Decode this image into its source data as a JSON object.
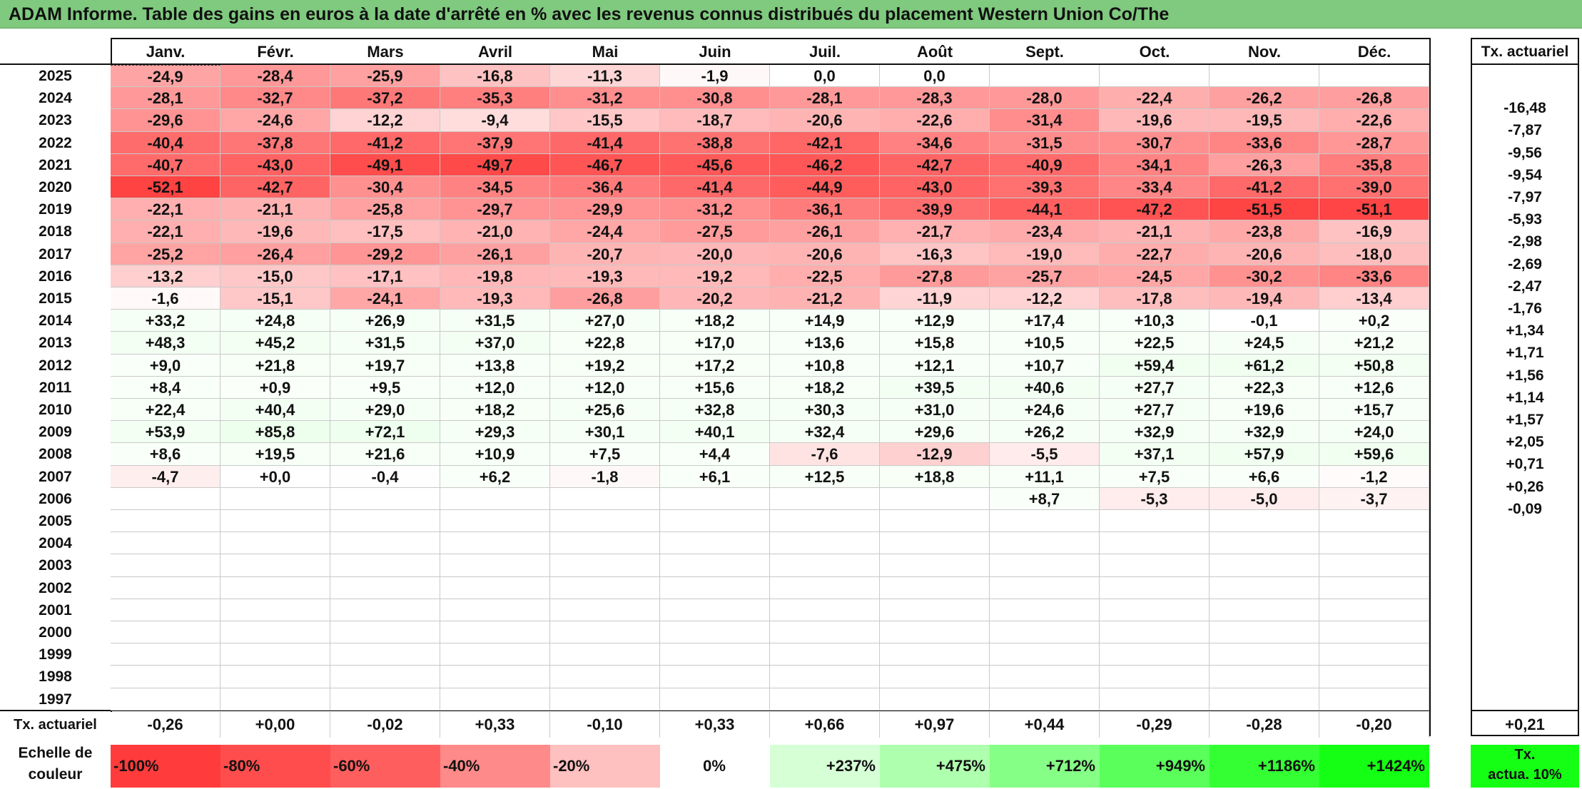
{
  "title": "ADAM Informe. Table des gains en euros à la date d'arrêté en % avec les revenus connus distribués du placement Western Union Co/The",
  "months": [
    "Janv.",
    "Févr.",
    "Mars",
    "Avril",
    "Mai",
    "Juin",
    "Juil.",
    "Août",
    "Sept.",
    "Oct.",
    "Nov.",
    "Déc."
  ],
  "actuariel_header": "Tx. actuariel",
  "years": [
    "2025",
    "2024",
    "2023",
    "2022",
    "2021",
    "2020",
    "2019",
    "2018",
    "2017",
    "2016",
    "2015",
    "2014",
    "2013",
    "2012",
    "2011",
    "2010",
    "2009",
    "2008",
    "2007",
    "2006",
    "2005",
    "2004",
    "2003",
    "2002",
    "2001",
    "2000",
    "1999",
    "1998",
    "1997"
  ],
  "values": [
    [
      "-24,9",
      "-28,4",
      "-25,9",
      "-16,8",
      "-11,3",
      "-1,9",
      "0,0",
      "0,0",
      "",
      "",
      "",
      ""
    ],
    [
      "-28,1",
      "-32,7",
      "-37,2",
      "-35,3",
      "-31,2",
      "-30,8",
      "-28,1",
      "-28,3",
      "-28,0",
      "-22,4",
      "-26,2",
      "-26,8"
    ],
    [
      "-29,6",
      "-24,6",
      "-12,2",
      "-9,4",
      "-15,5",
      "-18,7",
      "-20,6",
      "-22,6",
      "-31,4",
      "-19,6",
      "-19,5",
      "-22,6"
    ],
    [
      "-40,4",
      "-37,8",
      "-41,2",
      "-37,9",
      "-41,4",
      "-38,8",
      "-42,1",
      "-34,6",
      "-31,5",
      "-30,7",
      "-33,6",
      "-28,7"
    ],
    [
      "-40,7",
      "-43,0",
      "-49,1",
      "-49,7",
      "-46,7",
      "-45,6",
      "-46,2",
      "-42,7",
      "-40,9",
      "-34,1",
      "-26,3",
      "-35,8"
    ],
    [
      "-52,1",
      "-42,7",
      "-30,4",
      "-34,5",
      "-36,4",
      "-41,4",
      "-44,9",
      "-43,0",
      "-39,3",
      "-33,4",
      "-41,2",
      "-39,0"
    ],
    [
      "-22,1",
      "-21,1",
      "-25,8",
      "-29,7",
      "-29,9",
      "-31,2",
      "-36,1",
      "-39,9",
      "-44,1",
      "-47,2",
      "-51,5",
      "-51,1"
    ],
    [
      "-22,1",
      "-19,6",
      "-17,5",
      "-21,0",
      "-24,4",
      "-27,5",
      "-26,1",
      "-21,7",
      "-23,4",
      "-21,1",
      "-23,8",
      "-16,9"
    ],
    [
      "-25,2",
      "-26,4",
      "-29,2",
      "-26,1",
      "-20,7",
      "-20,0",
      "-20,6",
      "-16,3",
      "-19,0",
      "-22,7",
      "-20,6",
      "-18,0"
    ],
    [
      "-13,2",
      "-15,0",
      "-17,1",
      "-19,8",
      "-19,3",
      "-19,2",
      "-22,5",
      "-27,8",
      "-25,7",
      "-24,5",
      "-30,2",
      "-33,6"
    ],
    [
      "-1,6",
      "-15,1",
      "-24,1",
      "-19,3",
      "-26,8",
      "-20,2",
      "-21,2",
      "-11,9",
      "-12,2",
      "-17,8",
      "-19,4",
      "-13,4"
    ],
    [
      "+33,2",
      "+24,8",
      "+26,9",
      "+31,5",
      "+27,0",
      "+18,2",
      "+14,9",
      "+12,9",
      "+17,4",
      "+10,3",
      "-0,1",
      "+0,2"
    ],
    [
      "+48,3",
      "+45,2",
      "+31,5",
      "+37,0",
      "+22,8",
      "+17,0",
      "+13,6",
      "+15,8",
      "+10,5",
      "+22,5",
      "+24,5",
      "+21,2"
    ],
    [
      "+9,0",
      "+21,8",
      "+19,7",
      "+13,8",
      "+19,2",
      "+17,2",
      "+10,8",
      "+12,1",
      "+10,7",
      "+59,4",
      "+61,2",
      "+50,8"
    ],
    [
      "+8,4",
      "+0,9",
      "+9,5",
      "+12,0",
      "+12,0",
      "+15,6",
      "+18,2",
      "+39,5",
      "+40,6",
      "+27,7",
      "+22,3",
      "+12,6"
    ],
    [
      "+22,4",
      "+40,4",
      "+29,0",
      "+18,2",
      "+25,6",
      "+32,8",
      "+30,3",
      "+31,0",
      "+24,6",
      "+27,7",
      "+19,6",
      "+15,7"
    ],
    [
      "+53,9",
      "+85,8",
      "+72,1",
      "+29,3",
      "+30,1",
      "+40,1",
      "+32,4",
      "+29,6",
      "+26,2",
      "+32,9",
      "+32,9",
      "+24,0"
    ],
    [
      "+8,6",
      "+19,5",
      "+21,6",
      "+10,9",
      "+7,5",
      "+4,4",
      "-7,6",
      "-12,9",
      "-5,5",
      "+37,1",
      "+57,9",
      "+59,6"
    ],
    [
      "-4,7",
      "+0,0",
      "-0,4",
      "+6,2",
      "-1,8",
      "+6,1",
      "+12,5",
      "+18,8",
      "+11,1",
      "+7,5",
      "+6,6",
      "-1,2"
    ],
    [
      "",
      "",
      "",
      "",
      "",
      "",
      "",
      "",
      "+8,7",
      "-5,3",
      "-5,0",
      "-3,7"
    ],
    [
      "",
      "",
      "",
      "",
      "",
      "",
      "",
      "",
      "",
      "",
      "",
      ""
    ],
    [
      "",
      "",
      "",
      "",
      "",
      "",
      "",
      "",
      "",
      "",
      "",
      ""
    ],
    [
      "",
      "",
      "",
      "",
      "",
      "",
      "",
      "",
      "",
      "",
      "",
      ""
    ],
    [
      "",
      "",
      "",
      "",
      "",
      "",
      "",
      "",
      "",
      "",
      "",
      ""
    ],
    [
      "",
      "",
      "",
      "",
      "",
      "",
      "",
      "",
      "",
      "",
      "",
      ""
    ],
    [
      "",
      "",
      "",
      "",
      "",
      "",
      "",
      "",
      "",
      "",
      "",
      ""
    ],
    [
      "",
      "",
      "",
      "",
      "",
      "",
      "",
      "",
      "",
      "",
      "",
      ""
    ],
    [
      "",
      "",
      "",
      "",
      "",
      "",
      "",
      "",
      "",
      "",
      "",
      ""
    ],
    [
      "",
      "",
      "",
      "",
      "",
      "",
      "",
      "",
      "",
      "",
      "",
      ""
    ]
  ],
  "year_actuariel": [
    "",
    "-16,48",
    "-7,87",
    "-9,56",
    "-9,54",
    "-7,97",
    "-5,93",
    "-2,98",
    "-2,69",
    "-2,47",
    "-1,76",
    "+1,34",
    "+1,71",
    "+1,56",
    "+1,14",
    "+1,57",
    "+2,05",
    "+0,71",
    "+0,26",
    "-0,09",
    "",
    "",
    "",
    "",
    "",
    "",
    "",
    "",
    ""
  ],
  "footer": {
    "label": "Tx. actuariel",
    "values": [
      "-0,26",
      "+0,00",
      "-0,02",
      "+0,33",
      "-0,10",
      "+0,33",
      "+0,66",
      "+0,97",
      "+0,44",
      "-0,29",
      "-0,28",
      "-0,20"
    ],
    "total": "+0,21"
  },
  "legend": {
    "label_line1": "Echelle de",
    "label_line2": "couleur",
    "swatches": [
      {
        "text": "-100%",
        "color": "#ff3b3b"
      },
      {
        "text": "-80%",
        "color": "#ff4d4d"
      },
      {
        "text": "-60%",
        "color": "#ff5e5e"
      },
      {
        "text": "-40%",
        "color": "#ff8a8a"
      },
      {
        "text": "-20%",
        "color": "#ffc0c0"
      },
      {
        "text": "0%",
        "color": "#ffffff"
      },
      {
        "text": "+237%",
        "color": "#d6ffd6"
      },
      {
        "text": "+475%",
        "color": "#aeffae"
      },
      {
        "text": "+712%",
        "color": "#86ff86"
      },
      {
        "text": "+949%",
        "color": "#5bff5b"
      },
      {
        "text": "+1186%",
        "color": "#33ff33"
      },
      {
        "text": "+1424%",
        "color": "#14ff14"
      }
    ],
    "final_line1": "Tx.",
    "final_line2": "actua. 10%",
    "final_color": "#14ff14"
  },
  "colors": {
    "title_bg": "#7fca7e",
    "negative_max": "#ff3b3b",
    "positive_tint": "#f1fff1"
  }
}
